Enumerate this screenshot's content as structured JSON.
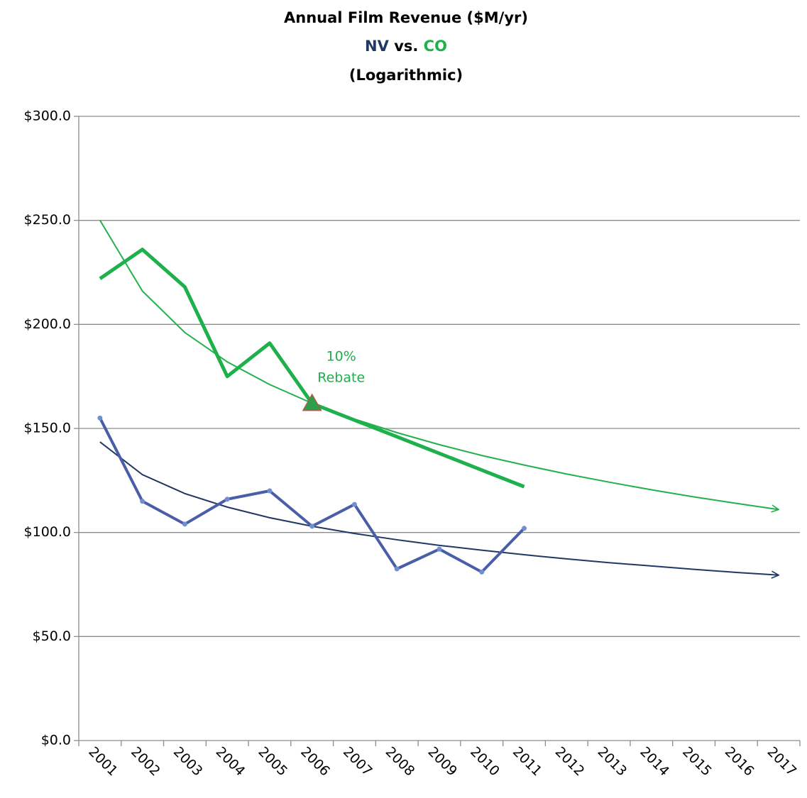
{
  "chart_data": {
    "type": "line",
    "title": "Annual Film Revenue ($M/yr)",
    "title_versus": "vs.",
    "note": "(Logarithmic)",
    "categories": [
      "2001",
      "2002",
      "2003",
      "2004",
      "2005",
      "2006",
      "2007",
      "2008",
      "2009",
      "2010",
      "2011",
      "2012",
      "2013",
      "2014",
      "2015",
      "2016",
      "2017"
    ],
    "series": [
      {
        "name": "NV",
        "color": "#4a5ea8",
        "values": [
          155,
          115,
          104,
          116,
          120,
          103,
          113.5,
          82.5,
          92,
          81,
          102,
          null,
          null,
          null,
          null,
          null,
          null
        ]
      },
      {
        "name": "CO",
        "color": "#1db04b",
        "values": [
          222,
          236,
          218,
          175,
          191,
          162,
          154,
          146,
          138,
          130,
          122,
          null,
          null,
          null,
          null,
          null,
          null
        ]
      }
    ],
    "trendlines": [
      {
        "color": "#1f3864",
        "values": [
          143.5,
          127.8,
          118.7,
          112.2,
          107.1,
          103.0,
          99.5,
          96.5,
          93.8,
          91.5,
          89.3,
          87.3,
          85.5,
          83.9,
          82.3,
          80.8,
          79.5
        ]
      },
      {
        "color": "#22b14c",
        "values": [
          250,
          216.0,
          196.1,
          182.0,
          171.1,
          162.1,
          154.5,
          148.0,
          142.2,
          137.0,
          132.4,
          128.1,
          124.2,
          120.5,
          117.1,
          114.0,
          111.0
        ]
      }
    ],
    "annotation": {
      "lines": [
        "10%",
        "Rebate"
      ],
      "series": 1,
      "index": 5,
      "color": "#1db04b",
      "marker_color": "#2e9e4a",
      "marker_edge": "#c0504d"
    },
    "names_color": [
      "#1f3864",
      "#1db04b"
    ],
    "ylim": [
      0,
      300
    ],
    "yticks": [
      {
        "value": 0,
        "label": "$0.0"
      },
      {
        "value": 50,
        "label": "$50.0"
      },
      {
        "value": 100,
        "label": "$100.0"
      },
      {
        "value": 150,
        "label": "$150.0"
      },
      {
        "value": 200,
        "label": "$200.0"
      },
      {
        "value": 250,
        "label": "$250.0"
      },
      {
        "value": 300,
        "label": "$300.0"
      }
    ],
    "grid": true
  }
}
